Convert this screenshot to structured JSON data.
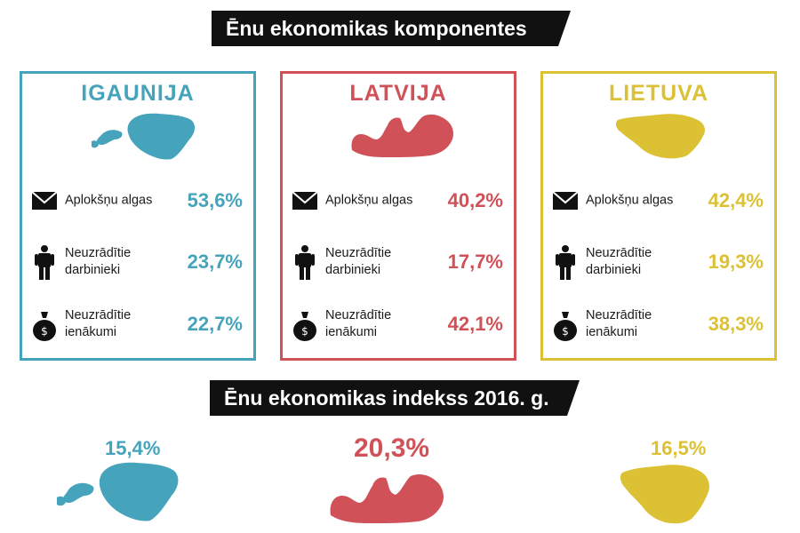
{
  "header": {
    "components_title": "Ēnu ekonomikas komponentes"
  },
  "index_section": {
    "title": "Ēnu ekonomikas indekss 2016. g."
  },
  "countries": [
    {
      "name": "IGAUNIJA",
      "color": "#45a3bb",
      "components": [
        {
          "label": "Aplokšņu algas",
          "value": "53,6%",
          "icon": "envelope-icon"
        },
        {
          "label_line1": "Neuzrādītie",
          "label_line2": "darbinieki",
          "value": "23,7%",
          "icon": "person-icon"
        },
        {
          "label_line1": "Neuzrādītie",
          "label_line2": "ienākumi",
          "value": "22,7%",
          "icon": "money-bag-icon"
        }
      ],
      "index_value": "15,4%"
    },
    {
      "name": "LATVIJA",
      "color": "#d05158",
      "components": [
        {
          "label": "Aplokšņu algas",
          "value": "40,2%",
          "icon": "envelope-icon"
        },
        {
          "label_line1": "Neuzrādītie",
          "label_line2": "darbinieki",
          "value": "17,7%",
          "icon": "person-icon"
        },
        {
          "label_line1": "Neuzrādītie",
          "label_line2": "ienākumi",
          "value": "42,1%",
          "icon": "money-bag-icon"
        }
      ],
      "index_value": "20,3%"
    },
    {
      "name": "LIETUVA",
      "color": "#dcc134",
      "components": [
        {
          "label": "Aplokšņu algas",
          "value": "42,4%",
          "icon": "envelope-icon"
        },
        {
          "label_line1": "Neuzrādītie",
          "label_line2": "darbinieki",
          "value": "19,3%",
          "icon": "person-icon"
        },
        {
          "label_line1": "Neuzrādītie",
          "label_line2": "ienākumi",
          "value": "38,3%",
          "icon": "money-bag-icon"
        }
      ],
      "index_value": "16,5%"
    }
  ]
}
